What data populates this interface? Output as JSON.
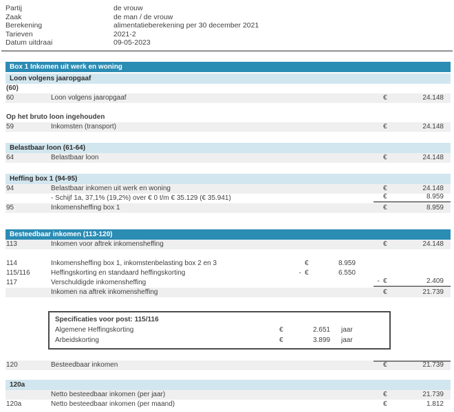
{
  "colors": {
    "bar_dark": "#2b8cb4",
    "bar_dark_text": "#ffffff",
    "bar_light": "#d2e6ef",
    "row_shaded": "#efefef",
    "rule": "#9b9b9b",
    "sum_line": "#808080",
    "text": "#3f3f3f"
  },
  "meta": {
    "rows": [
      {
        "label": "Partij",
        "value": "de vrouw"
      },
      {
        "label": "Zaak",
        "value": "de man / de vrouw"
      },
      {
        "label": "Berekening",
        "value": "alimentatieberekening per 30 december 2021"
      },
      {
        "label": "Tarieven",
        "value": "2021-2"
      },
      {
        "label": "Datum uitdraai",
        "value": "09-05-2023"
      }
    ]
  },
  "table": {
    "rows": [
      {
        "type": "bar_dark",
        "label": "Box 1 Inkomen uit werk en woning"
      },
      {
        "type": "bar_light",
        "label": "Loon volgens jaaropgaaf",
        "mt": true
      },
      {
        "type": "item",
        "num": "(60)",
        "num_bold": true,
        "desc": ""
      },
      {
        "type": "item",
        "num": "60",
        "desc": "Loon volgens jaaropgaaf",
        "right": {
          "eur": "€",
          "val": "24.148"
        },
        "shaded": true
      },
      {
        "type": "gap",
        "h": 14
      },
      {
        "type": "label",
        "label": "Op het bruto loon ingehouden"
      },
      {
        "type": "item",
        "num": "59",
        "desc": "Inkomsten (transport)",
        "right": {
          "eur": "€",
          "val": "24.148"
        },
        "shaded": true
      },
      {
        "type": "gap",
        "h": 16
      },
      {
        "type": "bar_light",
        "label": "Belastbaar loon (61-64)"
      },
      {
        "type": "item",
        "num": "64",
        "desc": "Belastbaar loon",
        "right": {
          "eur": "€",
          "val": "24.148"
        },
        "shaded": true
      },
      {
        "type": "gap",
        "h": 16
      },
      {
        "type": "bar_light",
        "label": "Heffing box 1 (94-95)"
      },
      {
        "type": "item",
        "num": "94",
        "desc": "Belastbaar inkomen uit werk en woning",
        "right": {
          "eur": "€",
          "val": "24.148"
        },
        "shaded": true
      },
      {
        "type": "item",
        "num": "",
        "desc": "- Schijf 1a, 37,1% (19,2%) over € 0 t/m € 35.129 (€ 35.941)",
        "right": {
          "eur": "€",
          "val": "8.959"
        },
        "line_below": true
      },
      {
        "type": "item",
        "num": "95",
        "desc": "Inkomensheffing box 1",
        "right": {
          "eur": "€",
          "val": "8.959"
        },
        "shaded": true
      },
      {
        "type": "gap",
        "h": 24
      },
      {
        "type": "bar_dark",
        "label": "Besteedbaar inkomen (113-120)"
      },
      {
        "type": "item",
        "num": "113",
        "desc": "Inkomen voor aftrek inkomensheffing",
        "right": {
          "eur": "€",
          "val": "24.148"
        },
        "shaded": true
      },
      {
        "type": "gap",
        "h": 14
      },
      {
        "type": "item",
        "num": "114",
        "desc": "Inkomensheffing box 1, inkomstenbelasting box 2 en 3",
        "mid": {
          "eur": "€",
          "val": "8.959"
        }
      },
      {
        "type": "item",
        "num": "115/116",
        "desc": "Heffingskorting en standaard heffingskorting",
        "mid": {
          "sign": "-",
          "eur": "€",
          "val": "6.550"
        }
      },
      {
        "type": "item",
        "num": "117",
        "desc": "Verschuldigde inkomensheffing",
        "right": {
          "sign": "-",
          "eur": "€",
          "val": "2.409"
        },
        "line_below": true
      },
      {
        "type": "item",
        "num": "",
        "desc": "Inkomen na aftrek inkomensheffing",
        "right": {
          "eur": "€",
          "val": "21.739"
        },
        "shaded": true
      },
      {
        "type": "gap",
        "h": 20
      },
      {
        "type": "specbox",
        "title": "Specificaties voor post: 115/116",
        "rows": [
          {
            "label": "Algemene Heffingskorting",
            "eur": "€",
            "val": "2.651",
            "unit": "jaar"
          },
          {
            "label": "Arbeidskorting",
            "eur": "€",
            "val": "3.899",
            "unit": "jaar"
          }
        ]
      },
      {
        "type": "gap",
        "h": 16
      },
      {
        "type": "item",
        "num": "120",
        "desc": "Besteedbaar inkomen",
        "right": {
          "eur": "€",
          "val": "21.739"
        },
        "shaded": true,
        "line_above": true
      },
      {
        "type": "gap",
        "h": 14
      },
      {
        "type": "bar_light",
        "label": "120a"
      },
      {
        "type": "item",
        "num": "",
        "desc": "Netto besteedbaar inkomen (per jaar)",
        "right": {
          "eur": "€",
          "val": "21.739"
        },
        "shaded": true
      },
      {
        "type": "item",
        "num": "120a",
        "desc": "Netto besteedbaar inkomen (per maand)",
        "right": {
          "eur": "€",
          "val": "1.812"
        }
      }
    ]
  }
}
